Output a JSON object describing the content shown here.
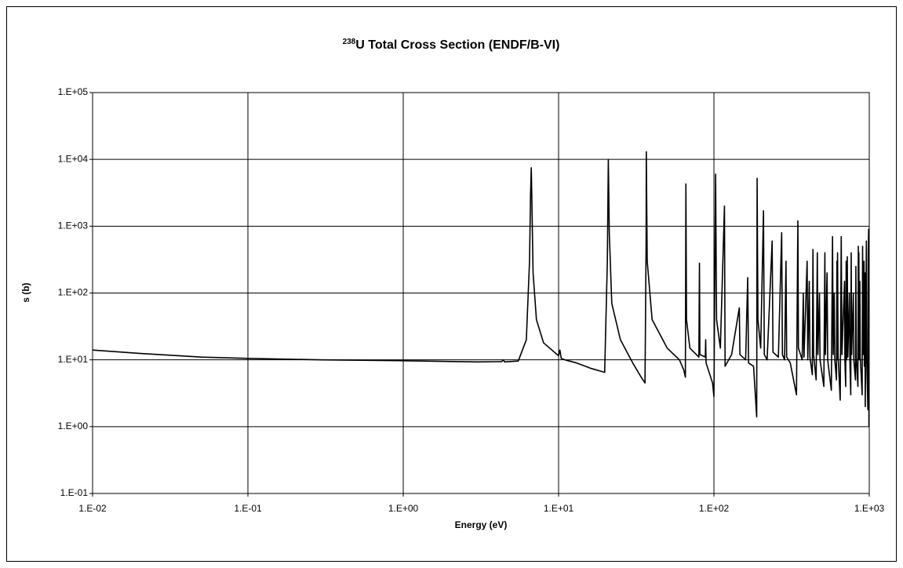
{
  "chart_data": {
    "type": "line",
    "title_sup": "238",
    "title": "U Total Cross Section (ENDF/B-VI)",
    "xlabel": "Energy (eV)",
    "ylabel": "s (b)",
    "xscale": "log",
    "yscale": "log",
    "grid": true,
    "xlim": [
      0.01,
      1000
    ],
    "ylim": [
      0.1,
      100000
    ],
    "xticks": [
      {
        "value": 0.01,
        "label": "1.E-02"
      },
      {
        "value": 0.1,
        "label": "1.E-01"
      },
      {
        "value": 1,
        "label": "1.E+00"
      },
      {
        "value": 10,
        "label": "1.E+01"
      },
      {
        "value": 100,
        "label": "1.E+02"
      },
      {
        "value": 1000,
        "label": "1.E+03"
      }
    ],
    "yticks": [
      {
        "value": 0.1,
        "label": "1.E-01"
      },
      {
        "value": 1,
        "label": "1.E+00"
      },
      {
        "value": 10,
        "label": "1.E+01"
      },
      {
        "value": 100,
        "label": "1.E+02"
      },
      {
        "value": 1000,
        "label": "1.E+03"
      },
      {
        "value": 10000,
        "label": "1.E+04"
      },
      {
        "value": 100000,
        "label": "1.E+05"
      }
    ],
    "x": [
      0.01,
      0.02,
      0.05,
      0.1,
      0.3,
      1,
      3,
      4.3,
      4.4,
      4.5,
      5.5,
      6.2,
      6.5,
      6.6,
      6.67,
      6.72,
      6.85,
      7.2,
      8,
      10,
      10.2,
      10.4,
      11,
      13,
      16,
      19.8,
      20.6,
      20.9,
      21.2,
      22,
      25,
      30,
      34,
      36,
      36.6,
      36.7,
      37.2,
      40,
      50,
      60,
      64,
      65.5,
      66,
      66.6,
      70,
      80,
      80.7,
      81.2,
      88,
      88.5,
      89,
      98,
      100,
      102.5,
      104,
      110,
      116.9,
      118,
      130,
      145.7,
      147,
      160,
      165,
      167,
      180,
      188.5,
      189.7,
      192,
      200,
      208.5,
      211,
      220,
      237,
      240,
      260,
      273,
      276,
      285,
      291,
      294,
      310,
      340,
      347,
      350,
      370,
      376,
      380,
      398,
      402,
      411,
      415,
      430,
      434,
      438,
      455,
      463,
      467,
      478,
      482,
      510,
      518,
      522,
      535,
      540,
      570,
      580,
      586,
      595,
      600,
      615,
      619,
      622,
      625,
      630,
      650,
      660,
      667,
      693,
      697,
      705,
      710,
      715,
      722,
      728,
      745,
      750,
      760,
      765,
      770,
      790,
      795,
      815,
      820,
      825,
      845,
      850,
      854,
      857,
      862,
      870,
      875,
      900,
      906,
      912,
      925,
      930,
      937,
      942,
      958,
      963,
      980,
      985,
      991,
      995,
      1000
    ],
    "series": [
      {
        "color": "#000000",
        "values": [
          14,
          12.5,
          11,
          10.5,
          10,
          9.7,
          9.3,
          9.4,
          10,
          9.3,
          9.6,
          20,
          300,
          3000,
          7500,
          3000,
          200,
          40,
          18,
          11.5,
          14,
          10.5,
          10,
          9,
          7.5,
          6.5,
          300,
          10000,
          800,
          70,
          20,
          9,
          5.5,
          4.5,
          600,
          13000,
          300,
          40,
          15,
          10,
          7,
          5.5,
          4300,
          40,
          15,
          11,
          280,
          12,
          11,
          20,
          9,
          4.5,
          2.8,
          6000,
          40,
          15,
          2000,
          8,
          12,
          60,
          12,
          10,
          170,
          9,
          8,
          1.4,
          5200,
          40,
          15,
          1700,
          12,
          10,
          600,
          13,
          11,
          800,
          12,
          10,
          300,
          11,
          9,
          3,
          1200,
          15,
          10,
          100,
          11,
          300,
          10,
          150,
          11,
          6,
          450,
          12,
          5,
          400,
          12,
          100,
          10,
          4,
          400,
          12,
          200,
          10,
          3.5,
          700,
          12,
          100,
          10,
          5,
          300,
          10,
          400,
          12,
          2.5,
          700,
          12,
          150,
          10,
          4,
          300,
          10,
          350,
          11,
          100,
          10,
          3,
          400,
          12,
          100,
          10,
          5,
          250,
          11,
          4,
          500,
          12,
          400,
          10,
          150,
          11,
          3,
          500,
          12,
          300,
          8,
          200,
          2,
          600,
          10,
          1.8,
          400,
          900,
          1,
          1
        ]
      }
    ]
  }
}
